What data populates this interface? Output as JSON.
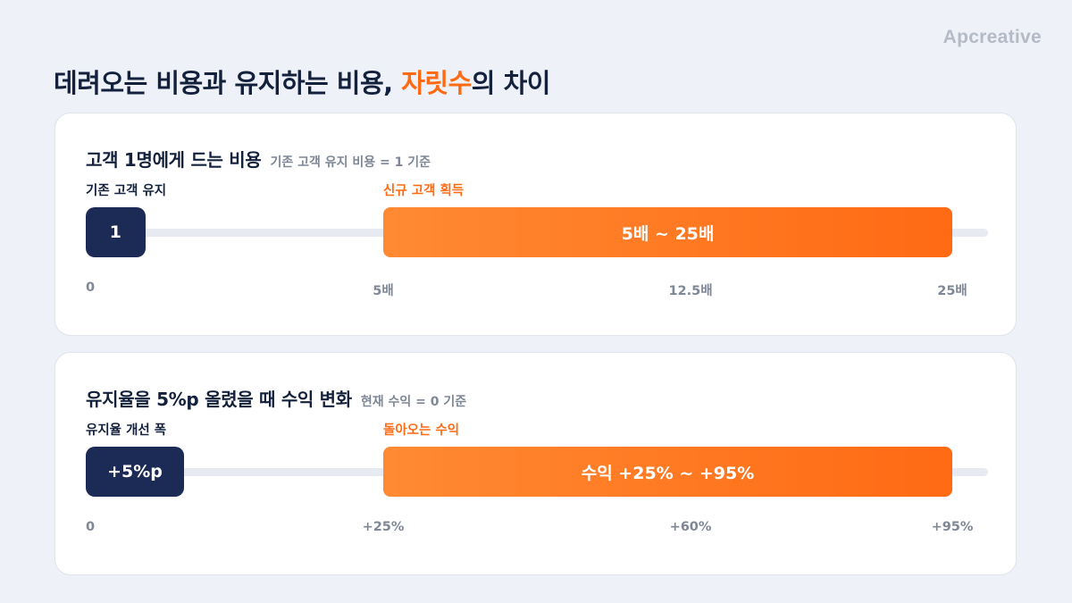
{
  "brand": "Apcreative",
  "title": {
    "prefix": "데려오는 비용과 유지하는 비용, ",
    "accent": "자릿수",
    "suffix": "의 차이"
  },
  "colors": {
    "navy": "#1c2b55",
    "orange": "#ff6a13",
    "muted": "#7f8796"
  },
  "chart_data": [
    {
      "type": "bar",
      "title": "고객 1명에게 드는 비용",
      "subtitle": "기존 고객 유지 비용 = 1 기준",
      "left_label": "기존 고객 유지",
      "right_label": "신규 고객 획득",
      "left_bar": {
        "from": 0,
        "to": 1,
        "text": "1"
      },
      "right_bar": {
        "from": 5,
        "to": 25,
        "text": "5배 ~ 25배"
      },
      "ticks": [
        {
          "value": 0,
          "label": "0"
        },
        {
          "value": 5,
          "label": "5배"
        },
        {
          "value": 12.5,
          "label": "12.5배"
        },
        {
          "value": 25,
          "label": "25배"
        }
      ]
    },
    {
      "type": "bar",
      "title": "유지율을 5%p 올렸을 때 수익 변화",
      "subtitle": "현재 수익 = 0 기준",
      "left_label": "유지율 개선 폭",
      "right_label": "돌아오는 수익",
      "left_bar": {
        "from": 0,
        "to": 5,
        "text": "+5%p"
      },
      "right_bar": {
        "from": 25,
        "to": 95,
        "text": "수익 +25% ~ +95%"
      },
      "ticks": [
        {
          "value": 0,
          "label": "0"
        },
        {
          "value": 25,
          "label": "+25%"
        },
        {
          "value": 60,
          "label": "+60%"
        },
        {
          "value": 95,
          "label": "+95%"
        }
      ]
    }
  ]
}
